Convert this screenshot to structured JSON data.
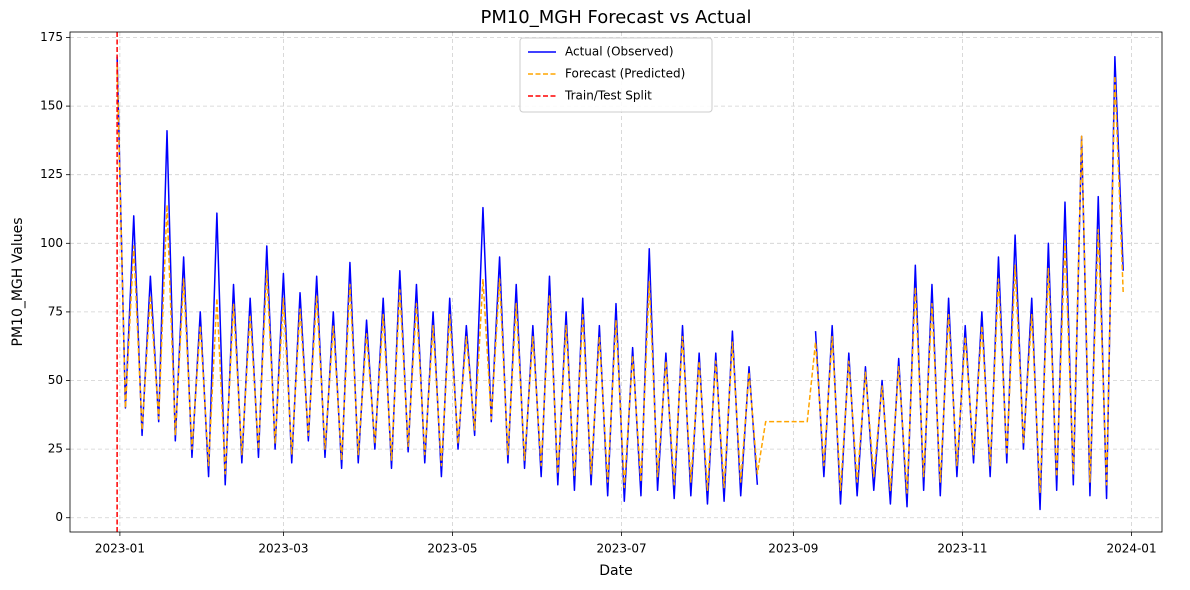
{
  "chart_data": {
    "type": "line",
    "title": "PM10_MGH Forecast vs Actual",
    "x_label": "Date",
    "y_label": "PM10_MGH Values",
    "x": [
      19357,
      19360,
      19363,
      19366,
      19369,
      19372,
      19375,
      19378,
      19381,
      19384,
      19387,
      19390,
      19393,
      19396,
      19399,
      19402,
      19405,
      19408,
      19411,
      19414,
      19417,
      19420,
      19423,
      19426,
      19429,
      19432,
      19435,
      19438,
      19441,
      19444,
      19447,
      19450,
      19453,
      19456,
      19459,
      19462,
      19465,
      19468,
      19471,
      19474,
      19477,
      19480,
      19483,
      19486,
      19489,
      19492,
      19495,
      19498,
      19501,
      19504,
      19507,
      19510,
      19513,
      19516,
      19519,
      19522,
      19525,
      19528,
      19531,
      19534,
      19537,
      19540,
      19543,
      19546,
      19549,
      19552,
      19555,
      19558,
      19561,
      19564,
      19567,
      19570,
      19573,
      19576,
      19579,
      19582,
      19585,
      19588,
      19591,
      19594,
      19597,
      19600,
      19603,
      19606,
      19609,
      19612,
      19615,
      19618,
      19621,
      19624,
      19627,
      19630,
      19633,
      19636,
      19639,
      19642,
      19645,
      19648,
      19651,
      19654,
      19657,
      19660,
      19663,
      19666,
      19669,
      19672,
      19675,
      19678,
      19681,
      19684,
      19687,
      19690,
      19693,
      19696,
      19699,
      19702,
      19705,
      19708,
      19711,
      19714,
      19717,
      19720
    ],
    "series": [
      {
        "name": "Actual (Observed)",
        "color": "#0000ff",
        "dashed": false,
        "values": [
          168,
          40,
          110,
          30,
          88,
          35,
          141,
          28,
          95,
          22,
          75,
          15,
          111,
          12,
          85,
          20,
          80,
          22,
          99,
          25,
          89,
          20,
          82,
          28,
          88,
          22,
          75,
          18,
          93,
          20,
          72,
          25,
          80,
          18,
          90,
          24,
          85,
          20,
          75,
          15,
          80,
          25,
          70,
          30,
          113,
          35,
          95,
          20,
          85,
          18,
          70,
          15,
          88,
          12,
          75,
          10,
          80,
          12,
          70,
          8,
          78,
          6,
          62,
          8,
          98,
          10,
          60,
          7,
          70,
          8,
          60,
          5,
          60,
          6,
          68,
          8,
          55,
          12,
          null,
          null,
          null,
          null,
          null,
          null,
          68,
          15,
          70,
          5,
          60,
          8,
          55,
          10,
          50,
          5,
          58,
          4,
          92,
          10,
          85,
          8,
          80,
          15,
          70,
          20,
          75,
          15,
          95,
          20,
          103,
          25,
          80,
          3,
          100,
          10,
          115,
          12,
          139,
          8,
          117,
          7,
          168,
          90
        ]
      },
      {
        "name": "Forecast (Predicted)",
        "color": "#ffa500",
        "dashed": true,
        "values": [
          165,
          40,
          99,
          32,
          81,
          36,
          114,
          30,
          87,
          25,
          70,
          19,
          80,
          16,
          78,
          23,
          74,
          25,
          90,
          27,
          80,
          23,
          76,
          30,
          81,
          25,
          70,
          21,
          85,
          23,
          67,
          27,
          74,
          21,
          83,
          26,
          78,
          23,
          70,
          19,
          74,
          27,
          66,
          32,
          87,
          36,
          87,
          23,
          78,
          21,
          66,
          19,
          81,
          16,
          70,
          15,
          74,
          16,
          66,
          13,
          72,
          11,
          59,
          13,
          86,
          15,
          57,
          12,
          66,
          13,
          57,
          10,
          57,
          11,
          64,
          13,
          53,
          16,
          35,
          35,
          35,
          35,
          35,
          35,
          64,
          19,
          66,
          10,
          57,
          13,
          53,
          15,
          48,
          10,
          55,
          9,
          84,
          15,
          78,
          13,
          74,
          19,
          66,
          23,
          70,
          19,
          87,
          23,
          92,
          27,
          74,
          9,
          91,
          15,
          101,
          16,
          139,
          13,
          105,
          12,
          161,
          82
        ]
      }
    ],
    "split": {
      "name": "Train/Test Split",
      "x": 19357,
      "color": "#ff0000"
    },
    "xlim": [
      19340,
      19734
    ],
    "xticks": [
      {
        "value": 19358,
        "label": "2023-01"
      },
      {
        "value": 19417,
        "label": "2023-03"
      },
      {
        "value": 19478,
        "label": "2023-05"
      },
      {
        "value": 19539,
        "label": "2023-07"
      },
      {
        "value": 19601,
        "label": "2023-09"
      },
      {
        "value": 19662,
        "label": "2023-11"
      },
      {
        "value": 19723,
        "label": "2024-01"
      }
    ],
    "ylim": [
      -5.2,
      177
    ],
    "yticks": [
      0,
      25,
      50,
      75,
      100,
      125,
      150,
      175
    ],
    "grid": true,
    "legend": "upper center"
  }
}
